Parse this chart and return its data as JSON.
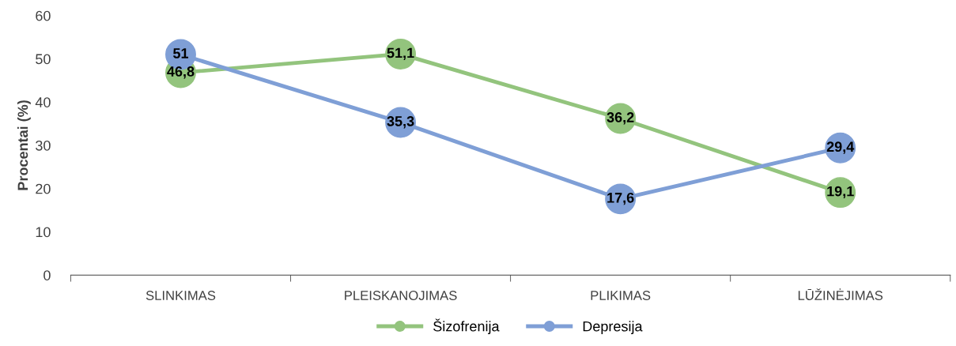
{
  "chart_data": {
    "type": "line",
    "ylabel": "Procentai (%)",
    "categories": [
      "SLINKIMAS",
      "PLEISKANOJIMAS",
      "PLIKIMAS",
      "LŪŽINĖJIMAS"
    ],
    "series": [
      {
        "name": "Šizofrenija",
        "color": "#93c47d",
        "values": [
          46.8,
          51.1,
          36.2,
          19.1
        ],
        "value_labels": [
          "46,8",
          "51,1",
          "36,2",
          "19,1"
        ]
      },
      {
        "name": "Depresija",
        "color": "#7f9fd6",
        "values": [
          51,
          35.3,
          17.6,
          29.4
        ],
        "value_labels": [
          "51",
          "35,3",
          "17,6",
          "29,4"
        ]
      }
    ],
    "ylim": [
      0,
      60
    ],
    "yticks": [
      0,
      10,
      20,
      30,
      40,
      50,
      60
    ],
    "grid": false,
    "legend": "bottom",
    "marker": "circle",
    "line_style": "solid"
  }
}
